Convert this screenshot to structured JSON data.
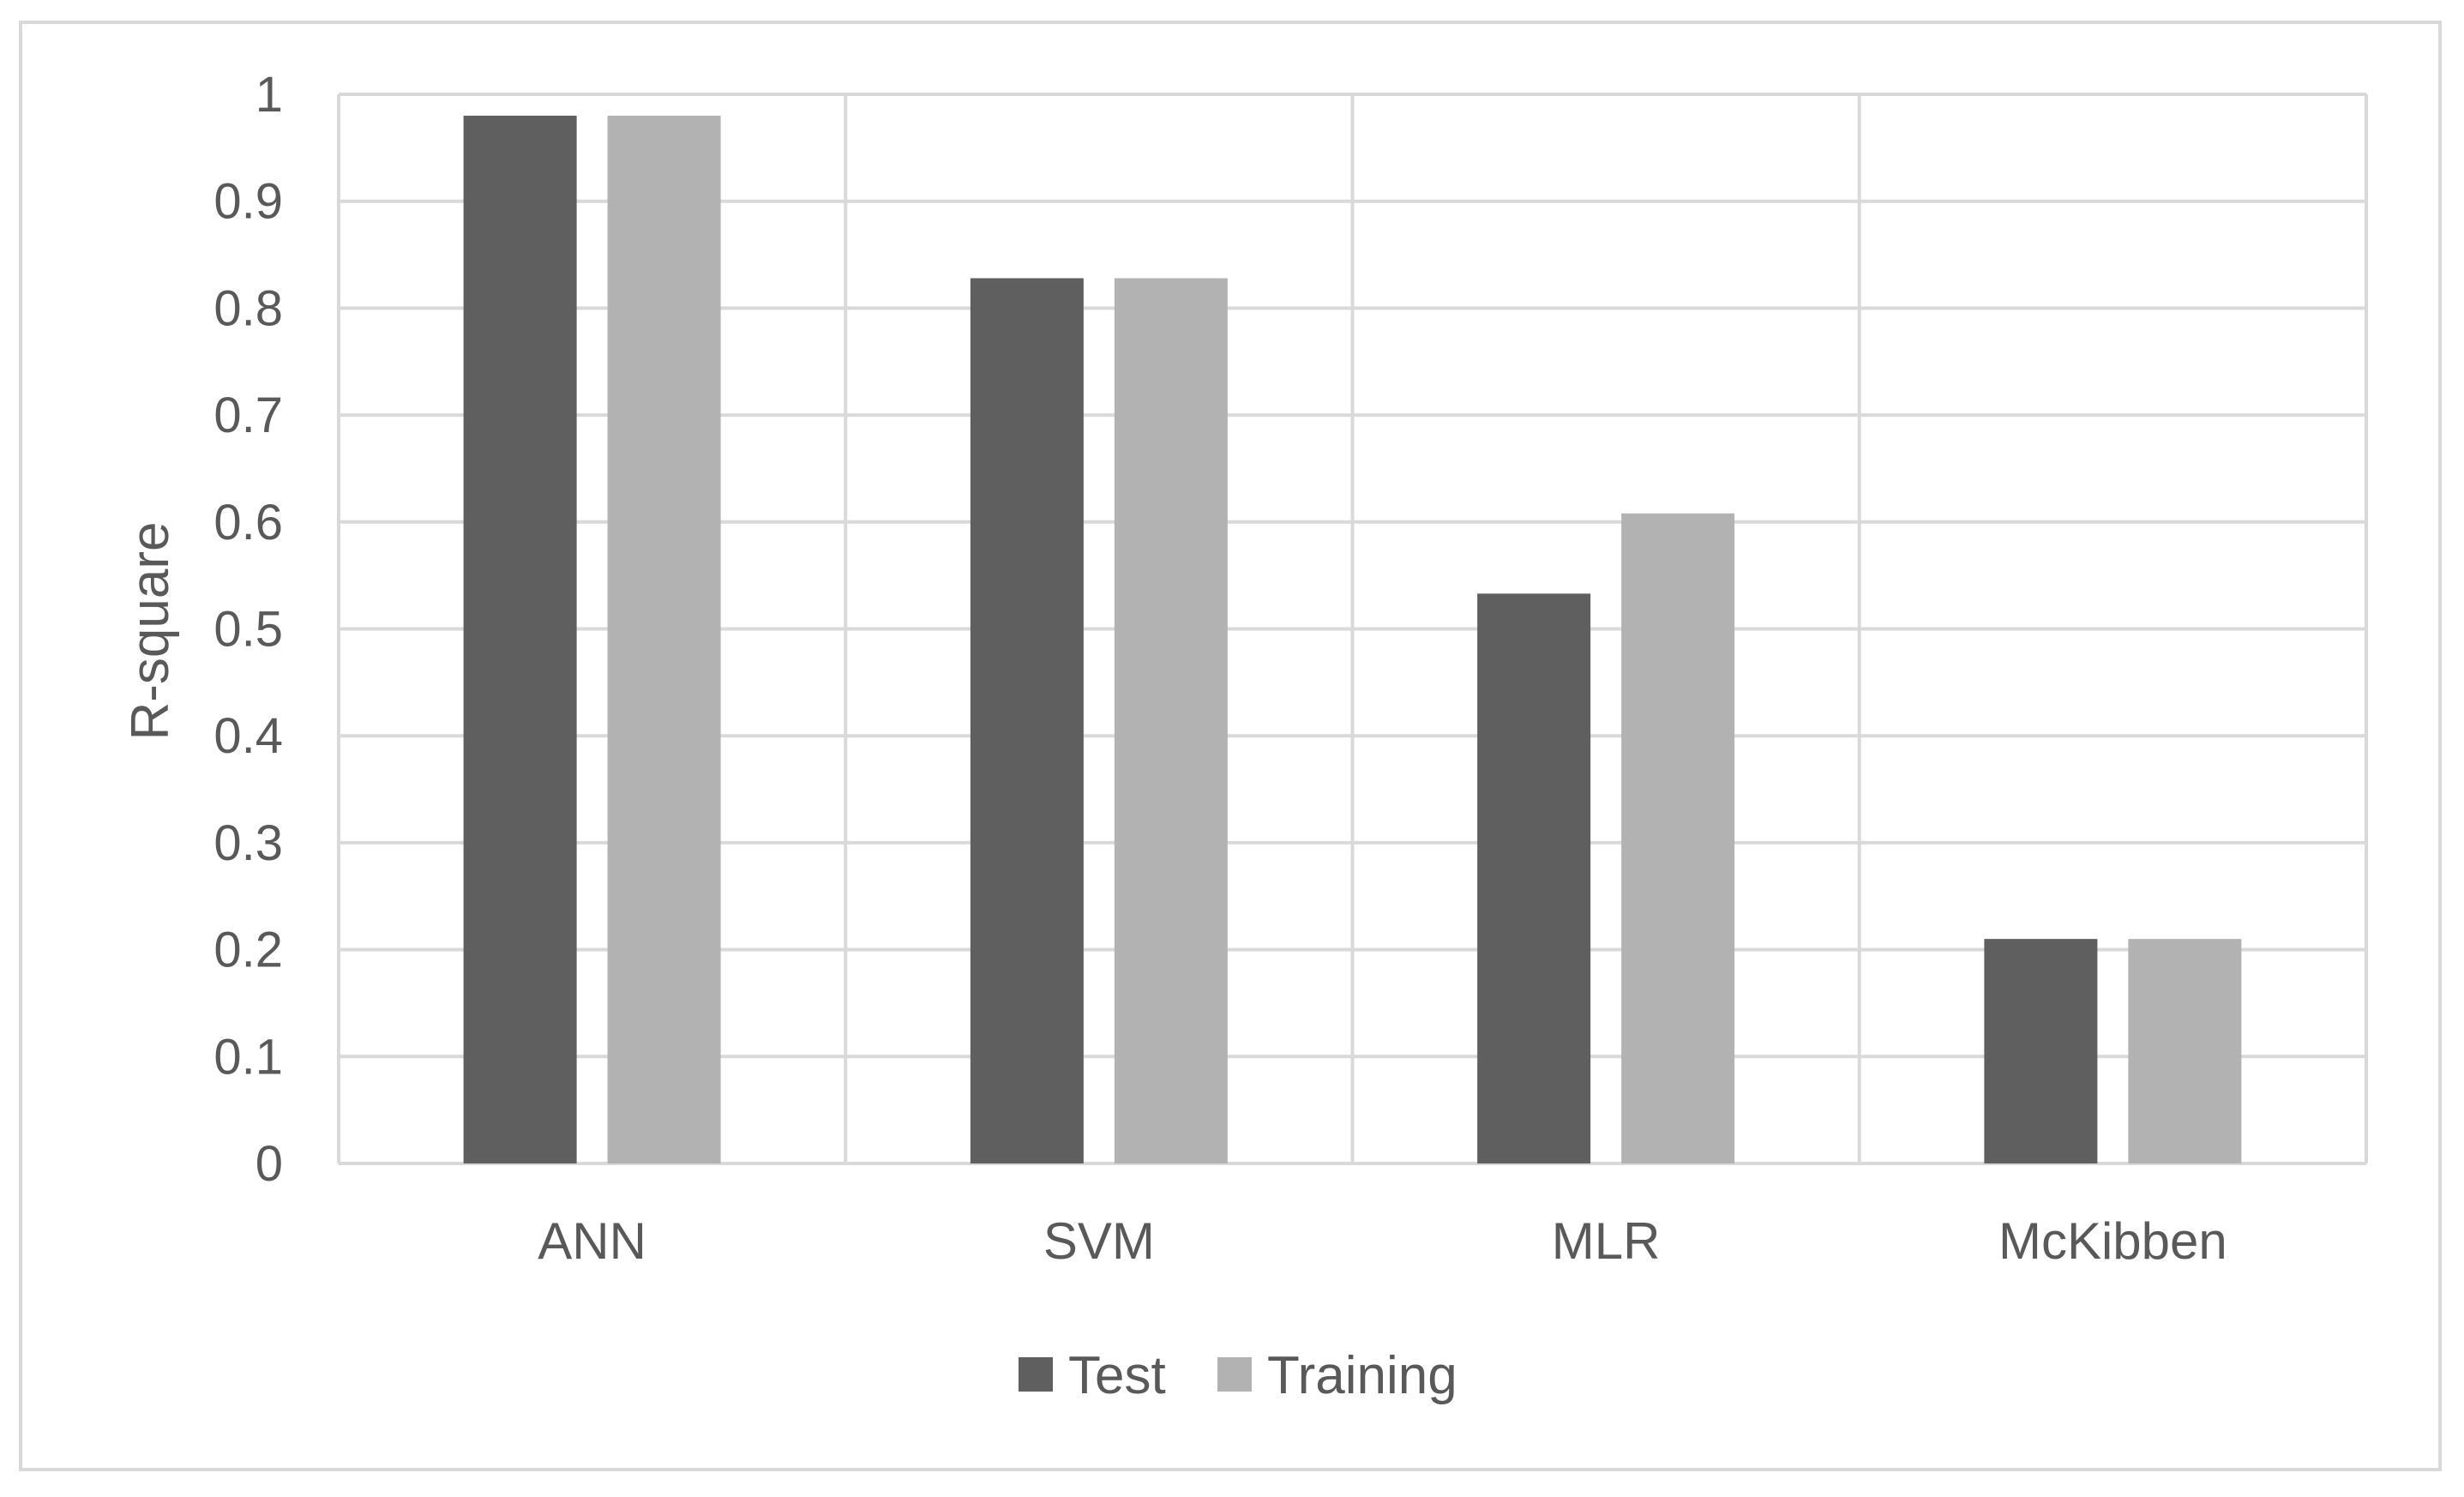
{
  "chart_data": {
    "type": "bar",
    "title": "",
    "xlabel": "",
    "ylabel": "R-square",
    "ylim": [
      0,
      1
    ],
    "yticks": [
      0,
      0.1,
      0.2,
      0.3,
      0.4,
      0.5,
      0.6,
      0.7,
      0.8,
      0.9,
      1
    ],
    "ytick_labels": [
      "0",
      "0.1",
      "0.2",
      "0.3",
      "0.4",
      "0.5",
      "0.6",
      "0.7",
      "0.8",
      "0.9",
      "1"
    ],
    "categories": [
      "ANN",
      "SVM",
      "MLR",
      "McKibben"
    ],
    "series": [
      {
        "name": "Test",
        "color": "#5f5f5f",
        "values": [
          0.98,
          0.828,
          0.533,
          0.21
        ]
      },
      {
        "name": "Training",
        "color": "#b2b2b2",
        "values": [
          0.98,
          0.828,
          0.608,
          0.21
        ]
      }
    ],
    "grid": true,
    "gridlines": "both",
    "legend_position": "bottom"
  },
  "colors": {
    "grid": "#d9d9d9",
    "text": "#595959",
    "frame": "#d9d9d9"
  }
}
